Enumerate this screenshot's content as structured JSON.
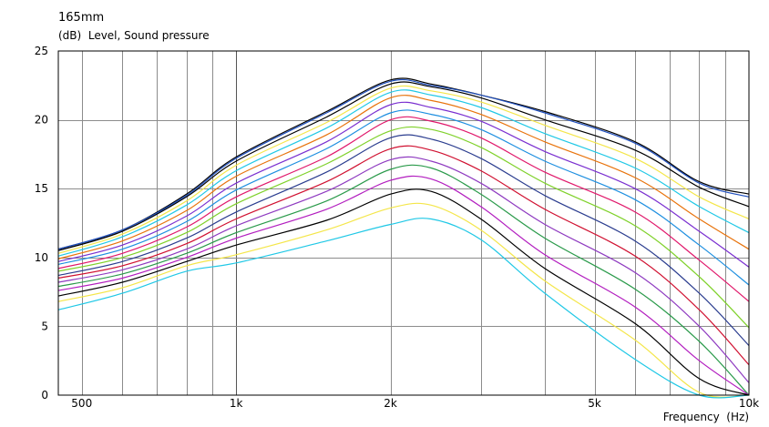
{
  "chart_data": {
    "type": "line",
    "title": "165mm",
    "ylabel": "(dB)  Level, Sound pressure",
    "xlabel": "Frequency  (Hz)",
    "x_scale": "log",
    "xlim": [
      450,
      10000
    ],
    "ylim": [
      0,
      25
    ],
    "x_ticks": [
      {
        "value": 500,
        "label": "500"
      },
      {
        "value": 1000,
        "label": "1k"
      },
      {
        "value": 2000,
        "label": "2k"
      },
      {
        "value": 5000,
        "label": "5k"
      },
      {
        "value": 10000,
        "label": "10k"
      }
    ],
    "y_ticks": [
      {
        "value": 0,
        "label": "0"
      },
      {
        "value": 5,
        "label": "5"
      },
      {
        "value": 10,
        "label": "10"
      },
      {
        "value": 15,
        "label": "15"
      },
      {
        "value": 20,
        "label": "20"
      },
      {
        "value": 25,
        "label": "25"
      }
    ],
    "grid": true,
    "frequencies": [
      450,
      600,
      800,
      1000,
      1500,
      2000,
      2400,
      3000,
      4000,
      6000,
      8000,
      10000
    ],
    "series": [
      {
        "color": "#000000",
        "values": [
          10.6,
          12.0,
          14.6,
          17.3,
          20.6,
          22.9,
          22.6,
          21.8,
          20.6,
          18.4,
          15.5,
          14.6
        ]
      },
      {
        "color": "#1f4fbf",
        "values": [
          10.6,
          12.0,
          14.5,
          17.2,
          20.5,
          22.8,
          22.5,
          21.8,
          20.5,
          18.3,
          15.4,
          14.4
        ]
      },
      {
        "color": "#000000",
        "values": [
          10.5,
          11.9,
          14.4,
          17.0,
          20.2,
          22.6,
          22.4,
          21.6,
          20.0,
          17.8,
          15.1,
          13.7
        ]
      },
      {
        "color": "#f4e64a",
        "values": [
          10.3,
          11.7,
          14.1,
          16.7,
          19.8,
          22.3,
          22.1,
          21.3,
          19.6,
          17.2,
          14.4,
          12.8
        ]
      },
      {
        "color": "#20c8e6",
        "values": [
          10.1,
          11.5,
          13.8,
          16.3,
          19.4,
          22.0,
          21.8,
          20.9,
          19.0,
          16.5,
          13.7,
          11.8
        ]
      },
      {
        "color": "#e8730c",
        "values": [
          9.9,
          11.2,
          13.4,
          15.9,
          18.9,
          21.6,
          21.4,
          20.4,
          18.4,
          15.8,
          12.8,
          10.6
        ]
      },
      {
        "color": "#7a2fd0",
        "values": [
          9.7,
          10.9,
          13.0,
          15.4,
          18.4,
          21.1,
          20.9,
          19.9,
          17.7,
          15.0,
          11.9,
          9.3
        ]
      },
      {
        "color": "#1e8fe0",
        "values": [
          9.5,
          10.6,
          12.6,
          14.9,
          17.9,
          20.5,
          20.4,
          19.3,
          17.0,
          14.2,
          10.9,
          8.0
        ]
      },
      {
        "color": "#e0186b",
        "values": [
          9.2,
          10.3,
          12.2,
          14.4,
          17.3,
          20.0,
          19.9,
          18.7,
          16.2,
          13.3,
          9.8,
          6.8
        ]
      },
      {
        "color": "#7fd12a",
        "values": [
          9.0,
          10.0,
          11.8,
          13.9,
          16.8,
          19.2,
          19.3,
          18.0,
          15.4,
          12.3,
          8.6,
          4.9
        ]
      },
      {
        "color": "#2b3d8f",
        "values": [
          8.7,
          9.7,
          11.4,
          13.3,
          16.2,
          18.7,
          18.6,
          17.2,
          14.5,
          11.2,
          7.4,
          3.6
        ]
      },
      {
        "color": "#d01030",
        "values": [
          8.5,
          9.4,
          11.0,
          12.8,
          15.5,
          17.9,
          17.8,
          16.3,
          13.5,
          10.1,
          6.2,
          2.2
        ]
      },
      {
        "color": "#8e3ac0",
        "values": [
          8.2,
          9.1,
          10.6,
          12.3,
          14.8,
          17.1,
          17.0,
          15.4,
          12.4,
          8.9,
          5.0,
          0.9
        ]
      },
      {
        "color": "#2a9a4a",
        "values": [
          7.9,
          8.8,
          10.3,
          11.8,
          14.1,
          16.4,
          16.5,
          14.6,
          11.4,
          7.7,
          3.9,
          0.0
        ]
      },
      {
        "color": "#b21dbf",
        "values": [
          7.6,
          8.5,
          10.0,
          11.4,
          13.5,
          15.6,
          15.7,
          13.7,
          10.2,
          6.4,
          2.5,
          0.0
        ]
      },
      {
        "color": "#000000",
        "values": [
          7.2,
          8.2,
          9.7,
          10.9,
          12.7,
          14.6,
          14.8,
          12.8,
          9.2,
          5.2,
          1.2,
          0.0
        ]
      },
      {
        "color": "#f4e64a",
        "values": [
          6.8,
          7.8,
          9.4,
          10.2,
          12.0,
          13.6,
          13.8,
          12.0,
          8.3,
          4.0,
          0.2,
          0.0
        ]
      },
      {
        "color": "#20c8e6",
        "values": [
          6.2,
          7.4,
          9.0,
          9.6,
          11.2,
          12.4,
          12.8,
          11.3,
          7.4,
          2.6,
          0.0,
          0.0
        ]
      }
    ]
  }
}
